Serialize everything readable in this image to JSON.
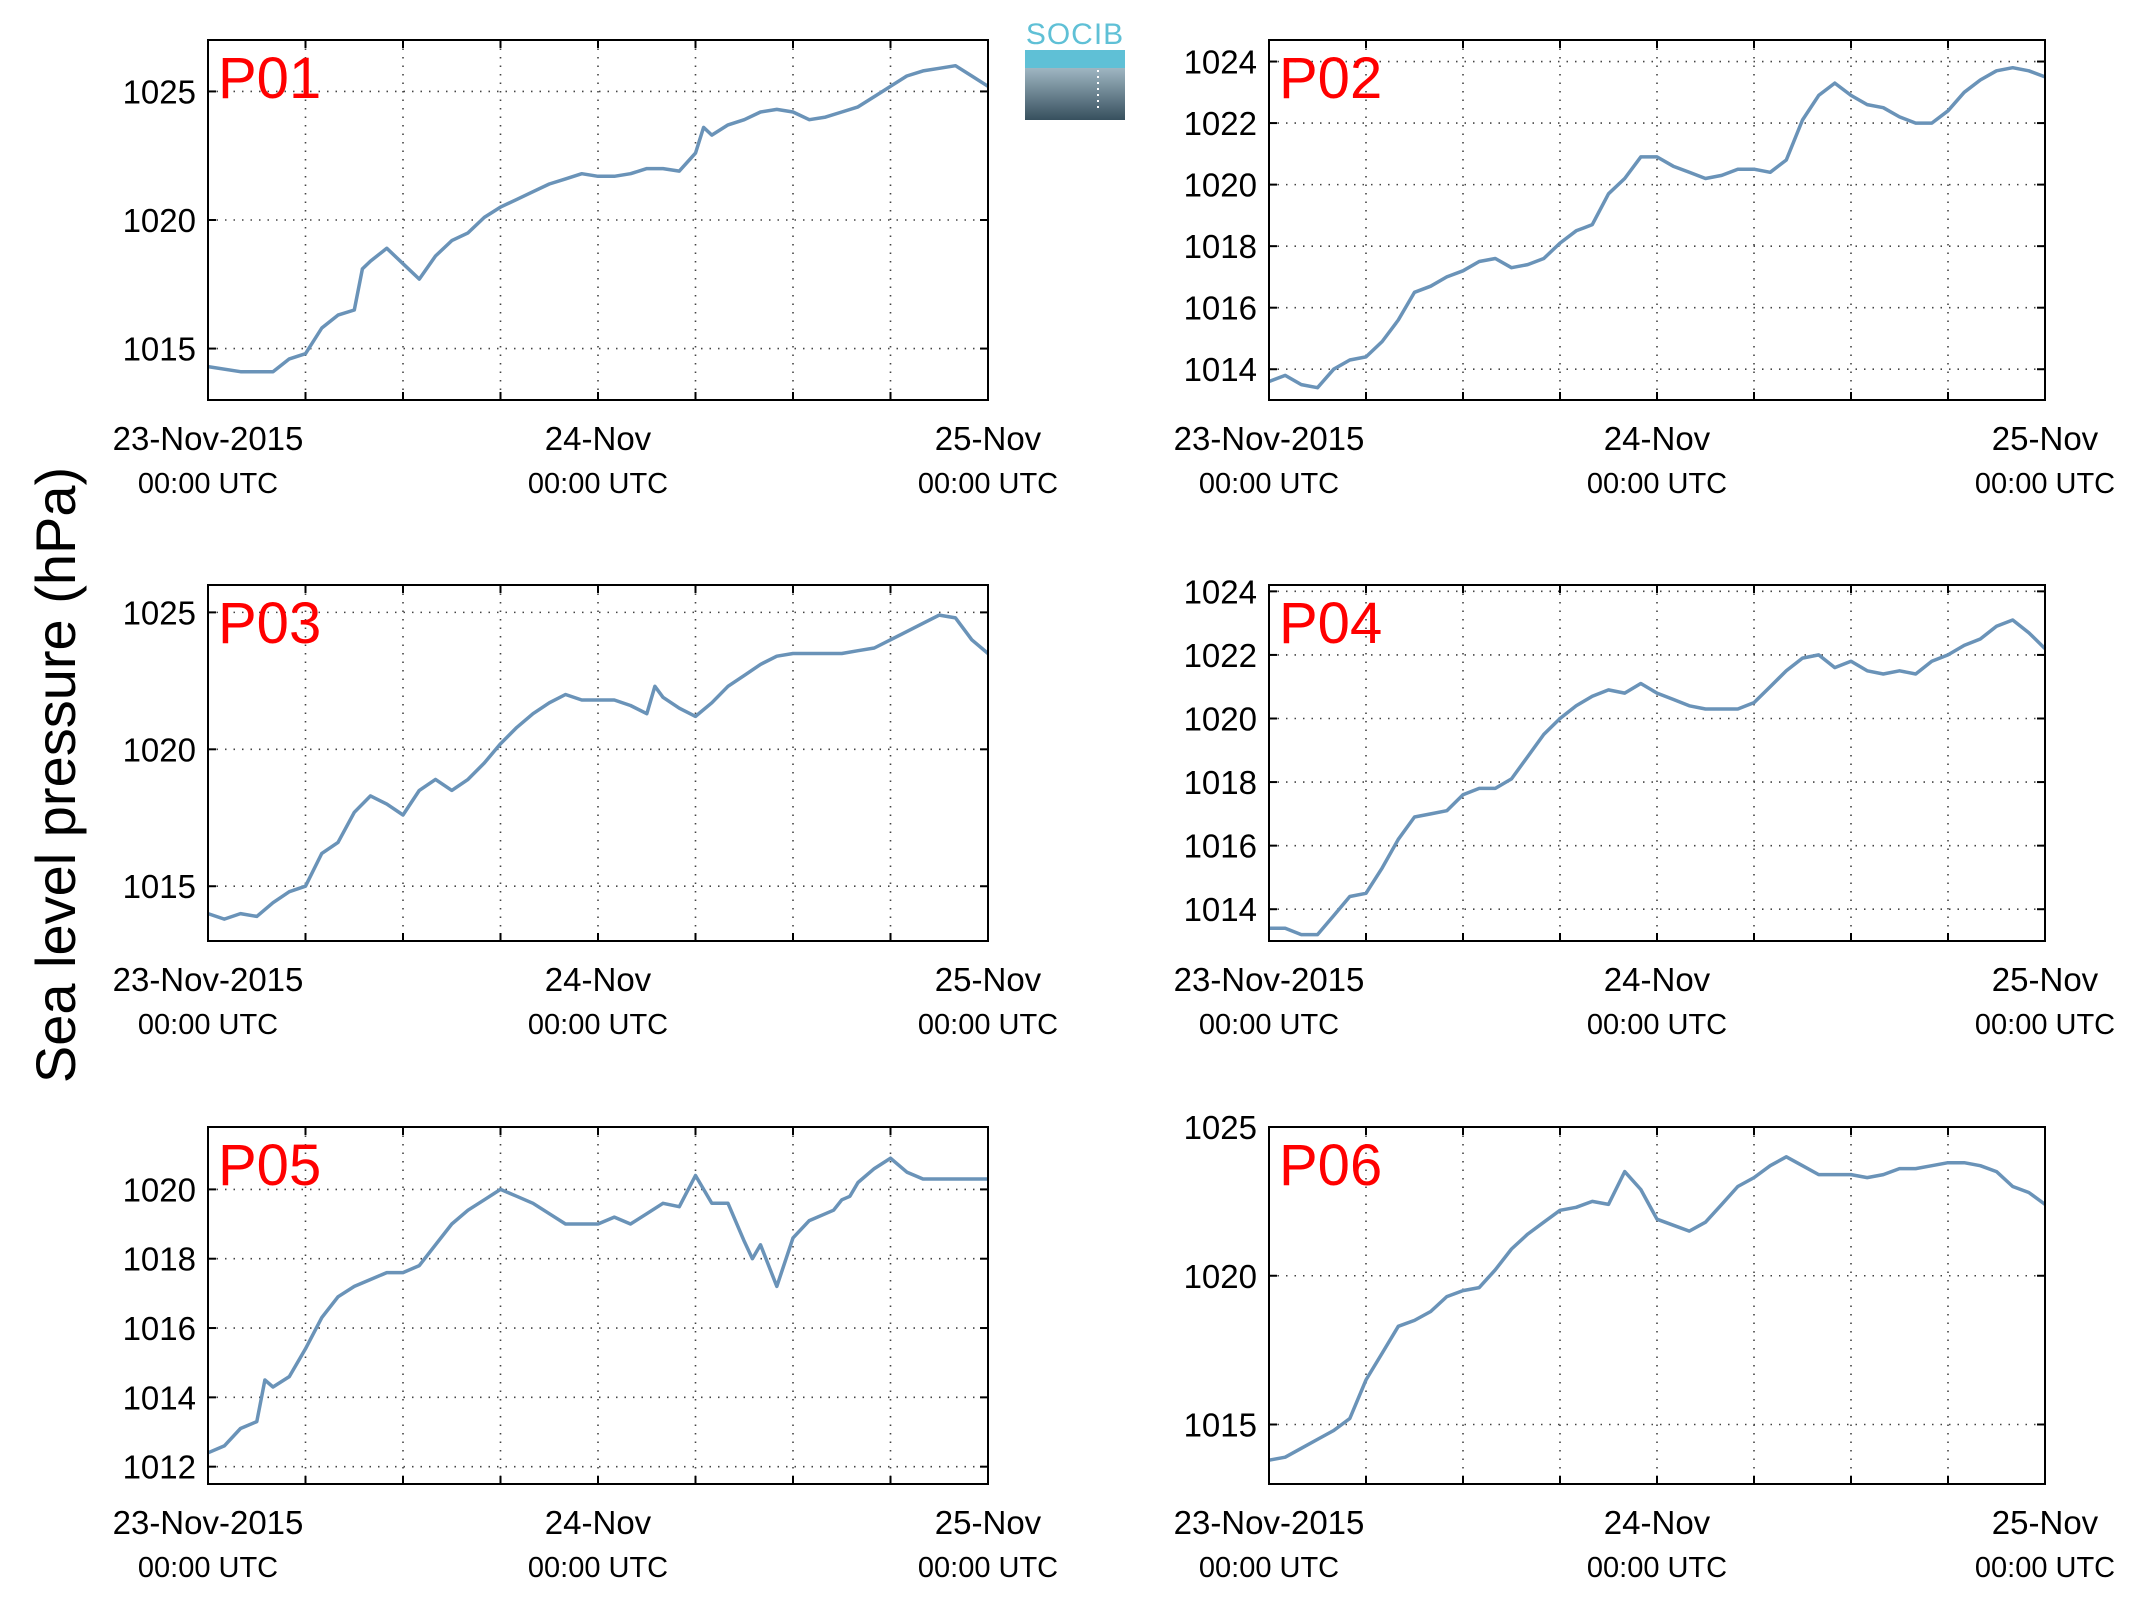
{
  "figure": {
    "ylabel": "Sea level pressure (hPa)",
    "logo_text": "SOCIB"
  },
  "colors": {
    "line": "#6a93b8",
    "title": "#ff0000"
  },
  "chart_data": [
    {
      "type": "line",
      "title": "P01",
      "x_ticks": [
        {
          "main": "23-Nov-2015",
          "sub": "00:00 UTC"
        },
        {
          "main": "24-Nov",
          "sub": "00:00 UTC"
        },
        {
          "main": "25-Nov",
          "sub": "00:00 UTC"
        }
      ],
      "xlim": [
        0,
        48
      ],
      "ylim": [
        1013,
        1027
      ],
      "yticks": [
        1015,
        1020,
        1025
      ],
      "grid": true,
      "x": [
        0,
        2,
        4,
        5,
        6,
        7,
        8,
        9,
        9.5,
        10,
        11,
        12,
        13,
        14,
        15,
        16,
        17,
        18,
        19,
        20,
        21,
        22,
        23,
        24,
        25,
        26,
        27,
        28,
        29,
        30,
        30.5,
        31,
        32,
        33,
        34,
        35,
        36,
        37,
        38,
        39,
        40,
        41,
        42,
        43,
        44,
        45,
        46,
        47,
        48
      ],
      "y": [
        1014.3,
        1014.1,
        1014.1,
        1014.6,
        1014.8,
        1015.8,
        1016.3,
        1016.5,
        1018.1,
        1018.4,
        1018.9,
        1018.3,
        1017.7,
        1018.6,
        1019.2,
        1019.5,
        1020.1,
        1020.5,
        1020.8,
        1021.1,
        1021.4,
        1021.6,
        1021.8,
        1021.7,
        1021.7,
        1021.8,
        1022.0,
        1022.0,
        1021.9,
        1022.6,
        1023.6,
        1023.3,
        1023.7,
        1023.9,
        1024.2,
        1024.3,
        1024.2,
        1023.9,
        1024.0,
        1024.2,
        1024.4,
        1024.8,
        1025.2,
        1025.6,
        1025.8,
        1025.9,
        1026.0,
        1025.6,
        1025.2
      ]
    },
    {
      "type": "line",
      "title": "P02",
      "x_ticks": [
        {
          "main": "23-Nov-2015",
          "sub": "00:00 UTC"
        },
        {
          "main": "24-Nov",
          "sub": "00:00 UTC"
        },
        {
          "main": "25-Nov",
          "sub": "00:00 UTC"
        }
      ],
      "xlim": [
        0,
        48
      ],
      "ylim": [
        1013,
        1024.7
      ],
      "yticks": [
        1014,
        1016,
        1018,
        1020,
        1022,
        1024
      ],
      "grid": true,
      "x": [
        0,
        1,
        2,
        3,
        4,
        5,
        6,
        7,
        8,
        9,
        10,
        11,
        12,
        13,
        14,
        15,
        16,
        17,
        18,
        19,
        19.5,
        20,
        21,
        22,
        23,
        24,
        25,
        26,
        27,
        28,
        29,
        30,
        31,
        32,
        33,
        34,
        35,
        36,
        37,
        38,
        39,
        40,
        41,
        42,
        43,
        44,
        45,
        46,
        47,
        48
      ],
      "y": [
        1013.6,
        1013.8,
        1013.5,
        1013.4,
        1014.0,
        1014.3,
        1014.4,
        1014.9,
        1015.6,
        1016.5,
        1016.7,
        1017.0,
        1017.2,
        1017.5,
        1017.6,
        1017.3,
        1017.4,
        1017.6,
        1018.1,
        1018.5,
        1018.6,
        1018.7,
        1019.7,
        1020.2,
        1020.9,
        1020.9,
        1020.6,
        1020.4,
        1020.2,
        1020.3,
        1020.5,
        1020.5,
        1020.4,
        1020.8,
        1022.1,
        1022.9,
        1023.3,
        1022.9,
        1022.6,
        1022.5,
        1022.2,
        1022.0,
        1022.0,
        1022.4,
        1023.0,
        1023.4,
        1023.7,
        1023.8,
        1023.7,
        1023.5
      ]
    },
    {
      "type": "line",
      "title": "P03",
      "x_ticks": [
        {
          "main": "23-Nov-2015",
          "sub": "00:00 UTC"
        },
        {
          "main": "24-Nov",
          "sub": "00:00 UTC"
        },
        {
          "main": "25-Nov",
          "sub": "00:00 UTC"
        }
      ],
      "xlim": [
        0,
        48
      ],
      "ylim": [
        1013,
        1026
      ],
      "yticks": [
        1015,
        1020,
        1025
      ],
      "grid": true,
      "x": [
        0,
        1,
        2,
        3,
        4,
        5,
        6,
        7,
        8,
        9,
        10,
        11,
        12,
        13,
        14,
        15,
        16,
        17,
        18,
        19,
        20,
        21,
        22,
        23,
        24,
        25,
        26,
        27,
        27.5,
        28,
        29,
        30,
        31,
        32,
        33,
        34,
        35,
        36,
        37,
        38,
        39,
        40,
        41,
        42,
        43,
        44,
        45,
        46,
        47,
        48
      ],
      "y": [
        1014.0,
        1013.8,
        1014.0,
        1013.9,
        1014.4,
        1014.8,
        1015.0,
        1016.2,
        1016.6,
        1017.7,
        1018.3,
        1018.0,
        1017.6,
        1018.5,
        1018.9,
        1018.5,
        1018.9,
        1019.5,
        1020.2,
        1020.8,
        1021.3,
        1021.7,
        1022.0,
        1021.8,
        1021.8,
        1021.8,
        1021.6,
        1021.3,
        1022.3,
        1021.9,
        1021.5,
        1021.2,
        1021.7,
        1022.3,
        1022.7,
        1023.1,
        1023.4,
        1023.5,
        1023.5,
        1023.5,
        1023.5,
        1023.6,
        1023.7,
        1024.0,
        1024.3,
        1024.6,
        1024.9,
        1024.8,
        1024.0,
        1023.5
      ]
    },
    {
      "type": "line",
      "title": "P04",
      "x_ticks": [
        {
          "main": "23-Nov-2015",
          "sub": "00:00 UTC"
        },
        {
          "main": "24-Nov",
          "sub": "00:00 UTC"
        },
        {
          "main": "25-Nov",
          "sub": "00:00 UTC"
        }
      ],
      "xlim": [
        0,
        48
      ],
      "ylim": [
        1013,
        1024.2
      ],
      "yticks": [
        1014,
        1016,
        1018,
        1020,
        1022,
        1024
      ],
      "grid": true,
      "x": [
        0,
        1,
        2,
        3,
        4,
        5,
        6,
        7,
        8,
        9,
        10,
        11,
        12,
        13,
        14,
        15,
        16,
        17,
        18,
        19,
        20,
        21,
        22,
        23,
        24,
        25,
        26,
        27,
        28,
        29,
        30,
        31,
        32,
        33,
        34,
        35,
        36,
        37,
        38,
        39,
        40,
        41,
        42,
        43,
        44,
        45,
        46,
        47,
        48
      ],
      "y": [
        1013.4,
        1013.4,
        1013.2,
        1013.2,
        1013.8,
        1014.4,
        1014.5,
        1015.3,
        1016.2,
        1016.9,
        1017.0,
        1017.1,
        1017.6,
        1017.8,
        1017.8,
        1018.1,
        1018.8,
        1019.5,
        1020.0,
        1020.4,
        1020.7,
        1020.9,
        1020.8,
        1021.1,
        1020.8,
        1020.6,
        1020.4,
        1020.3,
        1020.3,
        1020.3,
        1020.5,
        1021.0,
        1021.5,
        1021.9,
        1022.0,
        1021.6,
        1021.8,
        1021.5,
        1021.4,
        1021.5,
        1021.4,
        1021.8,
        1022.0,
        1022.3,
        1022.5,
        1022.9,
        1023.1,
        1022.7,
        1022.2
      ]
    },
    {
      "type": "line",
      "title": "P05",
      "x_ticks": [
        {
          "main": "23-Nov-2015",
          "sub": "00:00 UTC"
        },
        {
          "main": "24-Nov",
          "sub": "00:00 UTC"
        },
        {
          "main": "25-Nov",
          "sub": "00:00 UTC"
        }
      ],
      "xlim": [
        0,
        48
      ],
      "ylim": [
        1011.5,
        1021.8
      ],
      "yticks": [
        1012,
        1014,
        1016,
        1018,
        1020
      ],
      "grid": true,
      "x": [
        0,
        1,
        2,
        3,
        3.5,
        4,
        5,
        6,
        7,
        8,
        9,
        10,
        11,
        12,
        13,
        14,
        15,
        16,
        17,
        18,
        19,
        20,
        21,
        22,
        23,
        24,
        25,
        26,
        27,
        28,
        29,
        30,
        31,
        32,
        33,
        33.5,
        34,
        35,
        36,
        37,
        38,
        38.5,
        39,
        39.5,
        40,
        41,
        42,
        43,
        44,
        45,
        46,
        47,
        48
      ],
      "y": [
        1012.4,
        1012.6,
        1013.1,
        1013.3,
        1014.5,
        1014.3,
        1014.6,
        1015.4,
        1016.3,
        1016.9,
        1017.2,
        1017.4,
        1017.6,
        1017.6,
        1017.8,
        1018.4,
        1019.0,
        1019.4,
        1019.7,
        1020.0,
        1019.8,
        1019.6,
        1019.3,
        1019.0,
        1019.0,
        1019.0,
        1019.2,
        1019.0,
        1019.3,
        1019.6,
        1019.5,
        1020.4,
        1019.6,
        1019.6,
        1018.5,
        1018.0,
        1018.4,
        1017.2,
        1018.6,
        1019.1,
        1019.3,
        1019.4,
        1019.7,
        1019.8,
        1020.2,
        1020.6,
        1020.9,
        1020.5,
        1020.3,
        1020.3,
        1020.3,
        1020.3,
        1020.3
      ]
    },
    {
      "type": "line",
      "title": "P06",
      "x_ticks": [
        {
          "main": "23-Nov-2015",
          "sub": "00:00 UTC"
        },
        {
          "main": "24-Nov",
          "sub": "00:00 UTC"
        },
        {
          "main": "25-Nov",
          "sub": "00:00 UTC"
        }
      ],
      "xlim": [
        0,
        48
      ],
      "ylim": [
        1013,
        1025
      ],
      "yticks": [
        1015,
        1020,
        1025
      ],
      "grid": true,
      "x": [
        0,
        1,
        2,
        3,
        4,
        5,
        6,
        7,
        8,
        9,
        10,
        11,
        12,
        13,
        14,
        15,
        16,
        17,
        18,
        19,
        20,
        21,
        22,
        23,
        24,
        25,
        26,
        27,
        28,
        29,
        30,
        31,
        32,
        33,
        34,
        35,
        36,
        37,
        38,
        39,
        40,
        41,
        42,
        43,
        44,
        45,
        46,
        47,
        48
      ],
      "y": [
        1013.8,
        1013.9,
        1014.2,
        1014.5,
        1014.8,
        1015.2,
        1016.5,
        1017.4,
        1018.3,
        1018.5,
        1018.8,
        1019.3,
        1019.5,
        1019.6,
        1020.2,
        1020.9,
        1021.4,
        1021.8,
        1022.2,
        1022.3,
        1022.5,
        1022.4,
        1023.5,
        1022.9,
        1021.9,
        1021.7,
        1021.5,
        1021.8,
        1022.4,
        1023.0,
        1023.3,
        1023.7,
        1024.0,
        1023.7,
        1023.4,
        1023.4,
        1023.4,
        1023.3,
        1023.4,
        1023.6,
        1023.6,
        1023.7,
        1023.8,
        1023.8,
        1023.7,
        1023.5,
        1023.0,
        1022.8,
        1022.4
      ]
    }
  ]
}
